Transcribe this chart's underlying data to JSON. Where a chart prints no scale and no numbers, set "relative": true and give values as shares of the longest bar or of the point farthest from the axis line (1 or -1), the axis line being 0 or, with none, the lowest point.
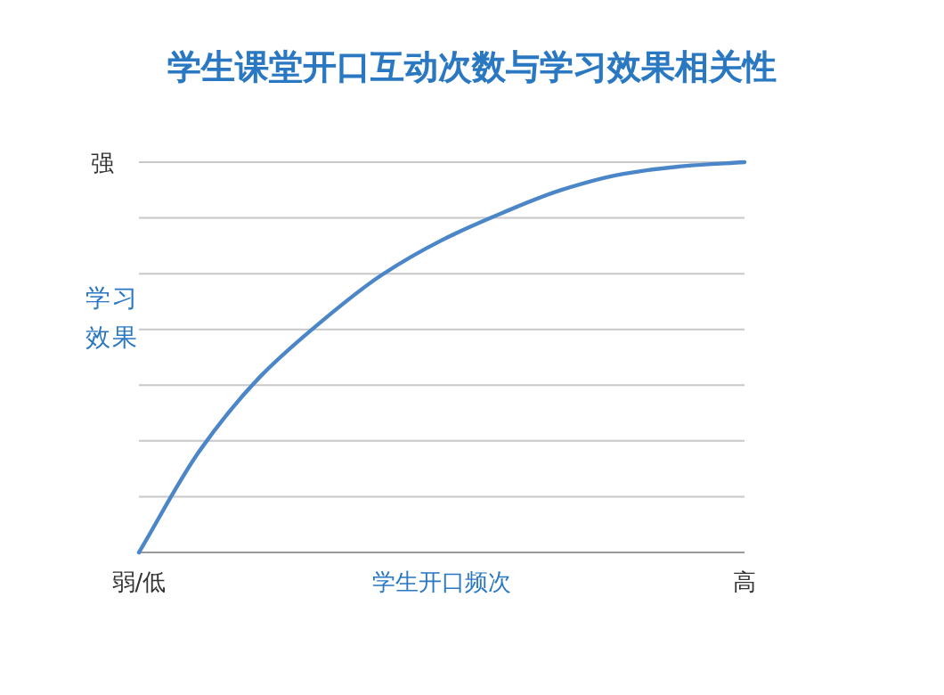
{
  "chart_data": {
    "type": "line",
    "title": "学生课堂开口互动次数与学习效果相关性",
    "xlabel": "学生开口频次",
    "ylabel": "学习效果",
    "categories": [
      "弱/低",
      null,
      null,
      null,
      null,
      null,
      null,
      null,
      null,
      null,
      "高"
    ],
    "values": [
      0,
      0.26,
      0.45,
      0.59,
      0.71,
      0.8,
      0.87,
      0.93,
      0.97,
      0.99,
      1
    ],
    "color": "#4a86c8",
    "relative": true,
    "grid": "y",
    "annotations": [
      "强"
    ]
  }
}
